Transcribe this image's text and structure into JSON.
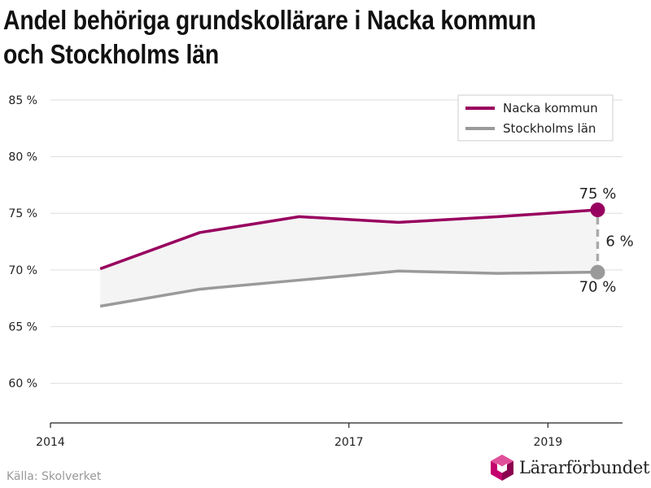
{
  "title": "Andel behöriga grundskollärare i Nacka kommun och Stockholms län",
  "source": "Källa: Skolverket",
  "logo_text": "Lärarförbundet",
  "colors": {
    "nacka": "#98005f",
    "stockholm": "#9a9a9a",
    "fill": "#f4f4f4",
    "grid": "#dddddd"
  },
  "chart_data": {
    "type": "line",
    "x": [
      2014.25,
      2015,
      2015.75,
      2016.5,
      2017.25,
      2018,
      2018.75,
      2019.25
    ],
    "xlim": [
      2014,
      2019.75
    ],
    "xticks": [
      {
        "value": 2014,
        "label": "2014"
      },
      {
        "value": 2017,
        "label": "2017"
      },
      {
        "value": 2019,
        "label": "2019"
      }
    ],
    "ylim": [
      56.5,
      86.5
    ],
    "yticks": [
      {
        "value": 60,
        "label": "60 %"
      },
      {
        "value": 65,
        "label": "65 %"
      },
      {
        "value": 70,
        "label": "70 %"
      },
      {
        "value": 75,
        "label": "75 %"
      },
      {
        "value": 80,
        "label": "80 %"
      },
      {
        "value": 85,
        "label": "85 %"
      }
    ],
    "grid": true,
    "legend_position": "top-right",
    "series": [
      {
        "name": "Nacka kommun",
        "x": [
          2014.5,
          2015.5,
          2016.5,
          2017.5,
          2018.5,
          2019.5
        ],
        "values": [
          70.1,
          73.3,
          74.7,
          74.2,
          74.7,
          75.3
        ]
      },
      {
        "name": "Stockholms län",
        "x": [
          2014.5,
          2015.5,
          2016.5,
          2017.5,
          2018.5,
          2019.5
        ],
        "values": [
          66.8,
          68.3,
          69.1,
          69.9,
          69.7,
          69.8
        ]
      }
    ],
    "annotations": {
      "nacka_end": "75 %",
      "stockholm_end": "70 %",
      "difference": "6 %"
    }
  }
}
